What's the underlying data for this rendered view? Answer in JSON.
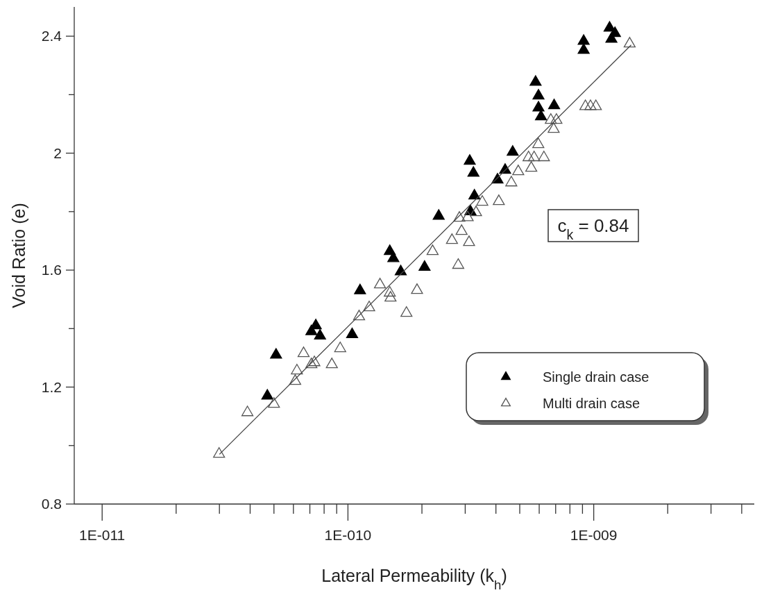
{
  "chart_data": {
    "type": "scatter",
    "xlabel": "Lateral Permeability  (k$_{h}$)",
    "ylabel": "Void Ratio (e)",
    "log": "x",
    "xlim": [
      7.7e-12,
      4.5e-09
    ],
    "ylim": [
      0.8,
      2.5
    ],
    "xticks": [
      {
        "value": 1e-11,
        "label": "1E-011"
      },
      {
        "value": 2e-11,
        "label": null
      },
      {
        "value": 3e-11,
        "label": null
      },
      {
        "value": 4e-11,
        "label": null
      },
      {
        "value": 5e-11,
        "label": null
      },
      {
        "value": 6e-11,
        "label": null
      },
      {
        "value": 7e-11,
        "label": null
      },
      {
        "value": 8e-11,
        "label": null
      },
      {
        "value": 9e-11,
        "label": null
      },
      {
        "value": 1e-10,
        "label": "1E-010"
      },
      {
        "value": 2e-10,
        "label": null
      },
      {
        "value": 3e-10,
        "label": null
      },
      {
        "value": 4e-10,
        "label": null
      },
      {
        "value": 5e-10,
        "label": null
      },
      {
        "value": 6e-10,
        "label": null
      },
      {
        "value": 7e-10,
        "label": null
      },
      {
        "value": 8e-10,
        "label": null
      },
      {
        "value": 9e-10,
        "label": null
      },
      {
        "value": 1e-09,
        "label": "1E-009"
      },
      {
        "value": 2e-09,
        "label": null
      },
      {
        "value": 3e-09,
        "label": null
      },
      {
        "value": 4e-09,
        "label": null
      }
    ],
    "yticks": [
      0.8,
      {
        "value": 1.0,
        "label": null
      },
      1.2,
      {
        "value": 1.4,
        "label": null
      },
      1.6,
      {
        "value": 1.8,
        "label": null
      },
      2,
      {
        "value": 2.2,
        "label": null
      },
      2.4
    ],
    "grid": false,
    "legend": "bottom right",
    "marker": "triangle",
    "annotations": [
      "c$_{k}$ = 0.84"
    ],
    "series": [
      {
        "name": "Single drain case",
        "color": "#000000",
        "x": [
          4.7e-11,
          5.1e-11,
          7.1e-11,
          7.4e-11,
          7.7e-11,
          1.04e-10,
          1.12e-10,
          1.48e-10,
          1.53e-10,
          1.64e-10,
          2.05e-10,
          2.34e-10,
          3.13e-10,
          3.24e-10,
          3.15e-10,
          3.27e-10,
          4.06e-10,
          4.36e-10,
          4.68e-10,
          5.8e-10,
          5.96e-10,
          5.96e-10,
          6.1e-10,
          6.9e-10,
          9.1e-10,
          9.1e-10,
          1.16e-09,
          1.22e-09,
          1.18e-09
        ],
        "values": [
          1.17,
          1.31,
          1.39,
          1.41,
          1.375,
          1.38,
          1.53,
          1.664,
          1.64,
          1.595,
          1.61,
          1.785,
          1.973,
          1.932,
          1.8,
          1.854,
          1.909,
          1.942,
          2.004,
          2.243,
          2.196,
          2.155,
          2.125,
          2.163,
          2.383,
          2.352,
          2.428,
          2.41,
          2.39
        ]
      },
      {
        "name": "Multi drain case",
        "color": "#555555",
        "x": [
          2.99e-11,
          3.9e-11,
          5e-11,
          6.1e-11,
          6.2e-11,
          6.6e-11,
          7.1e-11,
          7.3e-11,
          8.6e-11,
          9.3e-11,
          1.11e-10,
          1.22e-10,
          1.35e-10,
          1.48e-10,
          1.49e-10,
          1.73e-10,
          1.91e-10,
          2.21e-10,
          2.65e-10,
          2.81e-10,
          2.9e-10,
          2.84e-10,
          3.07e-10,
          3.11e-10,
          3.32e-10,
          3.52e-10,
          4.11e-10,
          4.62e-10,
          4.93e-10,
          5.57e-10,
          5.43e-10,
          5.72e-10,
          6.27e-10,
          5.95e-10,
          6.69e-10,
          7.05e-10,
          6.87e-10,
          9.25e-10,
          9.7e-10,
          1.02e-09,
          1.4e-09
        ],
        "values": [
          0.971,
          1.113,
          1.142,
          1.22,
          1.256,
          1.315,
          1.277,
          1.284,
          1.277,
          1.332,
          1.441,
          1.472,
          1.55,
          1.522,
          1.505,
          1.453,
          1.531,
          1.664,
          1.702,
          1.617,
          1.733,
          1.778,
          1.78,
          1.695,
          1.797,
          1.833,
          1.835,
          1.899,
          1.937,
          1.949,
          1.985,
          1.985,
          1.985,
          2.03,
          2.113,
          2.113,
          2.082,
          2.16,
          2.16,
          2.16,
          2.374
        ]
      },
      {
        "type": "line",
        "color": "#444444",
        "marker": "none",
        "x": [
          3e-11,
          1.42e-09
        ],
        "values": [
          0.97,
          2.37
        ]
      }
    ]
  }
}
